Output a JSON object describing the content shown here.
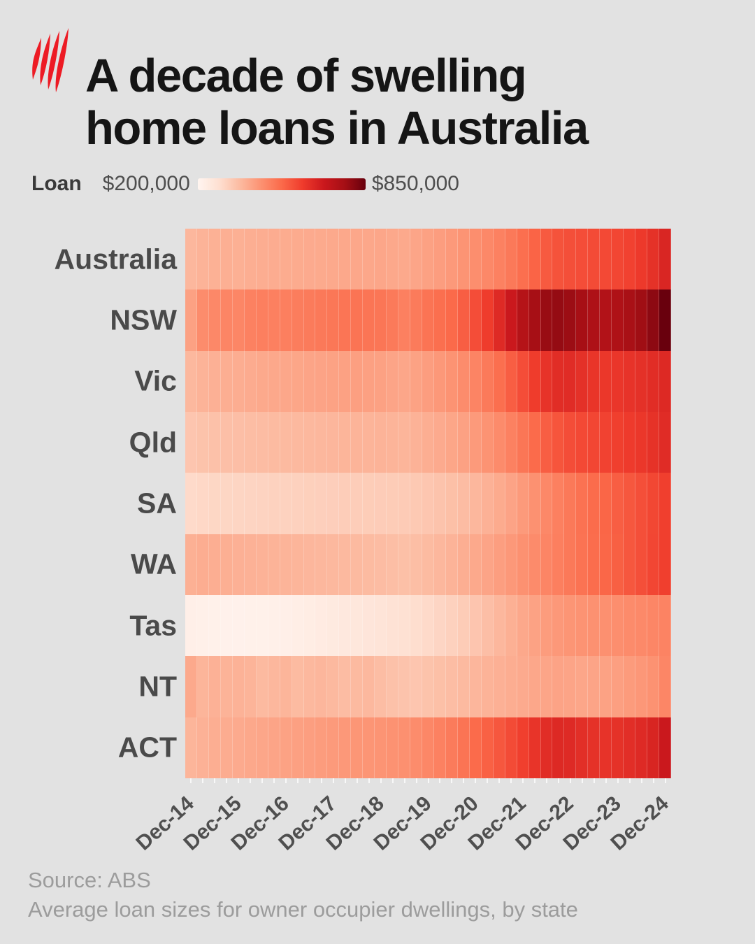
{
  "header": {
    "logo": "sbs-logo",
    "title_line1": "A decade of swelling",
    "title_line2": "home loans in Australia"
  },
  "legend": {
    "label": "Loan",
    "min_label": "$200,000",
    "max_label": "$850,000",
    "min_value": 200000,
    "max_value": 850000
  },
  "colors": {
    "background": "#e2e2e2",
    "logo_red": "#ED1B24",
    "title_text": "#151515",
    "row_label_text": "#4a4a4a",
    "axis_label_text": "#4f4f4f",
    "source_text": "#9c9c9c",
    "colormap_stops": [
      {
        "t": 0.0,
        "hex": "#fff5f0"
      },
      {
        "t": 0.125,
        "hex": "#fee0d2"
      },
      {
        "t": 0.25,
        "hex": "#fcbba1"
      },
      {
        "t": 0.375,
        "hex": "#fc9272"
      },
      {
        "t": 0.5,
        "hex": "#fb6a4a"
      },
      {
        "t": 0.625,
        "hex": "#ef3b2c"
      },
      {
        "t": 0.75,
        "hex": "#cb181d"
      },
      {
        "t": 0.875,
        "hex": "#a50f15"
      },
      {
        "t": 1.0,
        "hex": "#67000d"
      }
    ]
  },
  "chart_data": {
    "type": "heatmap",
    "title": "A decade of swelling home loans in Australia",
    "value_name": "Average loan size",
    "unit": "AUD (values stored in $ thousands, estimated from colour scale)",
    "color_scale_range": [
      200000,
      850000
    ],
    "n_columns": 41,
    "frequency": "quarterly",
    "x_start": "Dec-14",
    "x_end": "Dec-24",
    "x_tick_every_n_columns": 4,
    "x_tick_labels": [
      "Dec-14",
      "Dec-15",
      "Dec-16",
      "Dec-17",
      "Dec-18",
      "Dec-19",
      "Dec-20",
      "Dec-21",
      "Dec-22",
      "Dec-23",
      "Dec-24"
    ],
    "rows": [
      {
        "label": "Australia",
        "values_k": [
          370,
          378,
          383,
          386,
          385,
          388,
          390,
          392,
          393,
          395,
          396,
          397,
          398,
          400,
          402,
          403,
          404,
          400,
          398,
          406,
          414,
          422,
          430,
          440,
          452,
          465,
          478,
          495,
          515,
          535,
          552,
          565,
          572,
          575,
          578,
          582,
          588,
          596,
          610,
          628,
          655
        ]
      },
      {
        "label": "NSW",
        "values_k": [
          415,
          455,
          465,
          470,
          468,
          478,
          482,
          480,
          483,
          487,
          490,
          494,
          498,
          502,
          505,
          503,
          500,
          492,
          480,
          490,
          505,
          515,
          525,
          545,
          575,
          605,
          645,
          690,
          735,
          765,
          785,
          790,
          780,
          765,
          750,
          742,
          748,
          760,
          775,
          800,
          848
        ]
      },
      {
        "label": "Vic",
        "values_k": [
          368,
          378,
          384,
          388,
          390,
          394,
          398,
          400,
          402,
          405,
          408,
          410,
          412,
          415,
          417,
          416,
          414,
          408,
          404,
          412,
          422,
          432,
          442,
          455,
          472,
          492,
          515,
          545,
          575,
          605,
          625,
          638,
          640,
          630,
          620,
          615,
          618,
          624,
          630,
          638,
          648
        ]
      },
      {
        "label": "Qld",
        "values_k": [
          340,
          346,
          350,
          353,
          355,
          358,
          360,
          362,
          364,
          366,
          368,
          370,
          372,
          374,
          376,
          377,
          378,
          376,
          374,
          380,
          388,
          396,
          405,
          415,
          428,
          442,
          458,
          478,
          500,
          522,
          545,
          562,
          575,
          582,
          588,
          594,
          600,
          608,
          616,
          626,
          640
        ]
      },
      {
        "label": "SA",
        "values_k": [
          295,
          299,
          302,
          304,
          306,
          308,
          310,
          312,
          313,
          315,
          317,
          318,
          320,
          322,
          323,
          324,
          325,
          326,
          328,
          332,
          338,
          345,
          352,
          360,
          370,
          382,
          395,
          410,
          428,
          446,
          464,
          480,
          495,
          508,
          520,
          532,
          545,
          558,
          572,
          586,
          600
        ]
      },
      {
        "label": "WA",
        "values_k": [
          385,
          390,
          388,
          386,
          384,
          382,
          380,
          378,
          376,
          374,
          372,
          370,
          368,
          366,
          364,
          362,
          360,
          356,
          352,
          356,
          362,
          370,
          378,
          388,
          398,
          408,
          420,
          432,
          445,
          458,
          470,
          482,
          494,
          506,
          518,
          530,
          543,
          557,
          572,
          588,
          600
        ]
      },
      {
        "label": "Tas",
        "values_k": [
          222,
          218,
          215,
          214,
          214,
          215,
          216,
          218,
          222,
          227,
          232,
          238,
          244,
          250,
          255,
          260,
          266,
          272,
          278,
          286,
          295,
          305,
          315,
          326,
          340,
          355,
          370,
          385,
          400,
          413,
          424,
          432,
          438,
          442,
          445,
          448,
          452,
          457,
          462,
          468,
          475
        ]
      },
      {
        "label": "NT",
        "values_k": [
          398,
          375,
          382,
          378,
          380,
          376,
          365,
          370,
          374,
          362,
          368,
          372,
          366,
          360,
          364,
          368,
          358,
          350,
          344,
          340,
          346,
          352,
          358,
          364,
          372,
          378,
          384,
          390,
          396,
          402,
          406,
          410,
          408,
          404,
          408,
          412,
          418,
          426,
          434,
          444,
          468
        ]
      },
      {
        "label": "ACT",
        "values_k": [
          375,
          382,
          388,
          392,
          396,
          400,
          404,
          408,
          412,
          416,
          420,
          424,
          428,
          432,
          436,
          438,
          440,
          444,
          448,
          456,
          466,
          478,
          490,
          505,
          522,
          540,
          558,
          578,
          600,
          622,
          638,
          648,
          645,
          635,
          628,
          624,
          628,
          636,
          645,
          658,
          690
        ]
      }
    ],
    "legend_position": "top-left",
    "grid": "subtle white column separators"
  },
  "footer": {
    "source": "Source: ABS",
    "note": "Average loan sizes for owner occupier dwellings, by state"
  }
}
